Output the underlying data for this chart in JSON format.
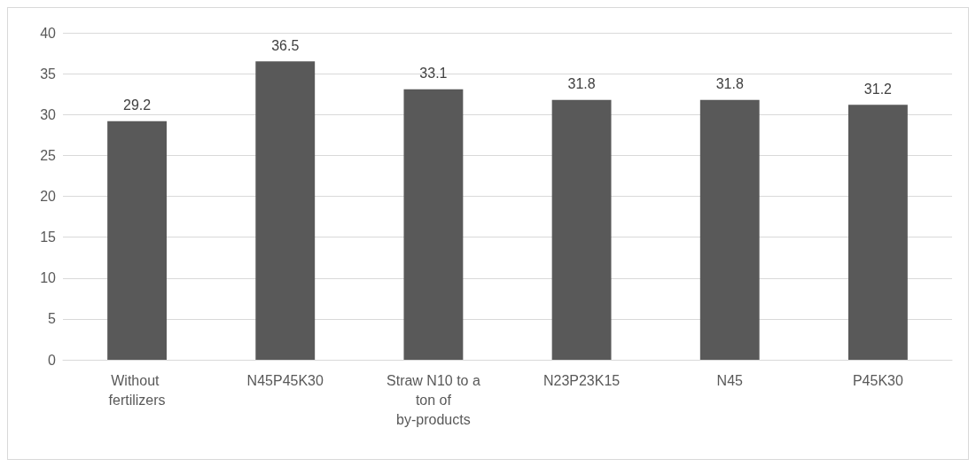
{
  "chart_data": {
    "type": "bar",
    "categories": [
      "Without fertilizers",
      "N45P45K30",
      "Straw N10 to a ton of by-products",
      "N23P23K15",
      "N45",
      "P45K30"
    ],
    "values": [
      29.2,
      36.5,
      33.1,
      31.8,
      31.8,
      31.2
    ],
    "color": "#595959",
    "ylim": [
      0,
      40
    ],
    "yticks": [
      0,
      5,
      10,
      15,
      20,
      25,
      30,
      35,
      40
    ],
    "grid": "y",
    "data_labels": true
  }
}
